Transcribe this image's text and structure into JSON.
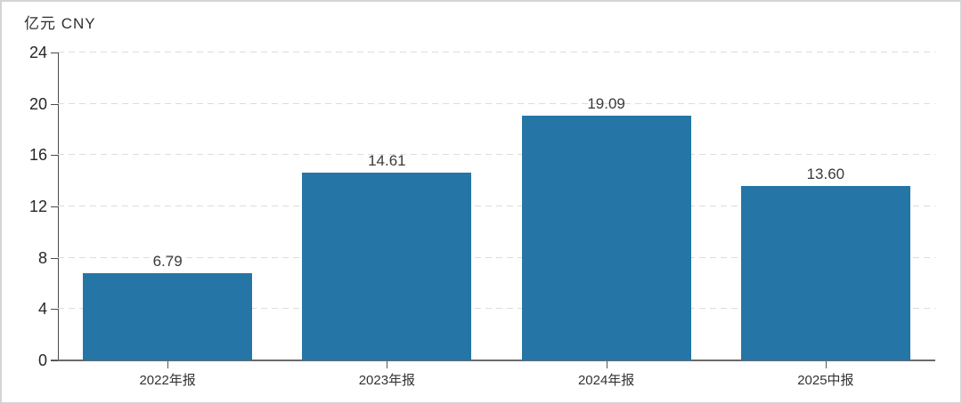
{
  "window": {
    "background": "#ffffff",
    "border_color": "#d4d4d4"
  },
  "chart_data": {
    "type": "bar",
    "title": "亿元 CNY",
    "categories": [
      "2022年报",
      "2023年报",
      "2024年报",
      "2025中报"
    ],
    "values": [
      6.79,
      14.61,
      19.09,
      13.6
    ],
    "value_labels": [
      "6.79",
      "14.61",
      "19.09",
      "13.60"
    ],
    "ylim": [
      0,
      24
    ],
    "yticks": [
      0,
      4,
      8,
      12,
      16,
      20,
      24
    ],
    "grid": "horizontal-dashed",
    "legend": "none",
    "bar_color": "#2576A6",
    "gridline_color": "#dcdcdc",
    "axis_color": "#4a4a4a",
    "label_color": "#3a3a3a"
  }
}
